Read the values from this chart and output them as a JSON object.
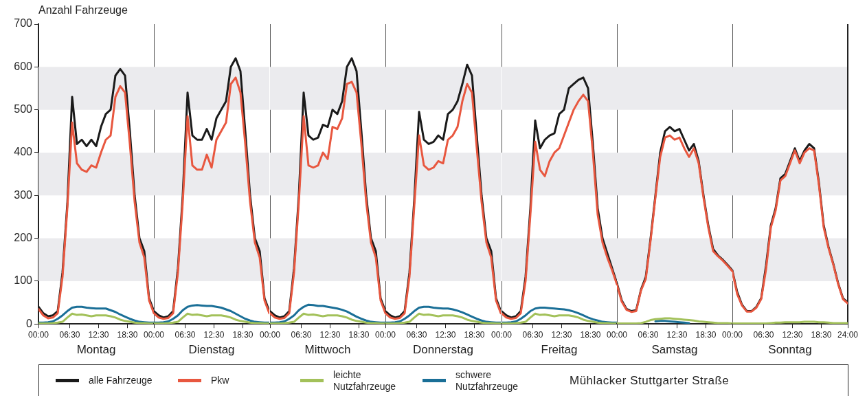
{
  "chart_data": [
    {
      "type": "line",
      "ylabel": "Anzahl Fahrzeuge",
      "xlabel": "Montag",
      "x": [
        0,
        1,
        2,
        3,
        4,
        5,
        6,
        7,
        8,
        9,
        10,
        11,
        12,
        13,
        14,
        15,
        16,
        17,
        18,
        19,
        20,
        21,
        22,
        23,
        24
      ],
      "xlim": [
        0,
        24
      ],
      "xticks": [
        {
          "value": 0,
          "label": "00:00"
        },
        {
          "value": 6.5,
          "label": "06:30"
        },
        {
          "value": 12.5,
          "label": "12:30"
        },
        {
          "value": 18.5,
          "label": "18:30"
        }
      ],
      "ylim": [
        0,
        700
      ],
      "yticks": [
        0,
        100,
        200,
        300,
        400,
        500,
        600,
        700
      ],
      "bands": [
        {
          "axis": "y",
          "from": 100,
          "to": 200,
          "color": "#ebebee"
        },
        {
          "axis": "y",
          "from": 300,
          "to": 400,
          "color": "#ebebee"
        },
        {
          "axis": "y",
          "from": 500,
          "to": 600,
          "color": "#ebebee"
        }
      ],
      "grid": false,
      "marker": "none",
      "line_style": "solid",
      "legend": "bottom",
      "annotations": [
        "Mühlacker Stuttgarter Straße"
      ],
      "series": [
        {
          "name": "alle Fahrzeuge",
          "color": "#1a1a1a",
          "values": [
            40,
            25,
            18,
            20,
            30,
            120,
            280,
            530,
            420,
            430,
            415,
            430,
            415,
            460,
            490,
            500,
            580,
            595,
            580,
            450,
            300,
            200,
            170,
            60,
            30
          ]
        },
        {
          "name": "Pkw",
          "color": "#e8573f",
          "values": [
            35,
            20,
            13,
            15,
            25,
            110,
            270,
            470,
            375,
            360,
            355,
            370,
            365,
            400,
            430,
            440,
            530,
            555,
            540,
            420,
            285,
            190,
            155,
            55,
            25
          ]
        },
        {
          "name": "leichte Nutzfahrzeuge",
          "color": "#a3c15a",
          "values": [
            1,
            1,
            1,
            2,
            3,
            5,
            15,
            24,
            21,
            22,
            20,
            18,
            20,
            20,
            20,
            18,
            15,
            10,
            7,
            5,
            3,
            2,
            2,
            1,
            1
          ]
        },
        {
          "name": "schwere Nutzfahrzeuge",
          "color": "#1a6f97",
          "values": [
            3,
            3,
            4,
            6,
            12,
            20,
            30,
            38,
            40,
            40,
            38,
            37,
            36,
            36,
            36,
            32,
            28,
            22,
            17,
            12,
            8,
            5,
            4,
            3,
            3
          ]
        }
      ]
    },
    {
      "type": "line",
      "xlabel": "Dienstag",
      "x": [
        0,
        1,
        2,
        3,
        4,
        5,
        6,
        7,
        8,
        9,
        10,
        11,
        12,
        13,
        14,
        15,
        16,
        17,
        18,
        19,
        20,
        21,
        22,
        23,
        24
      ],
      "xlim": [
        0,
        24
      ],
      "xticks": [
        {
          "value": 0,
          "label": "00:00"
        },
        {
          "value": 6.5,
          "label": "06:30"
        },
        {
          "value": 12.5,
          "label": "12:30"
        },
        {
          "value": 18.5,
          "label": "18:30"
        }
      ],
      "ylim": [
        0,
        700
      ],
      "yticks": [
        0,
        100,
        200,
        300,
        400,
        500,
        600,
        700
      ],
      "tick_labels": "x",
      "bands": [
        {
          "axis": "y",
          "from": 100,
          "to": 200,
          "color": "#ebebee"
        },
        {
          "axis": "y",
          "from": 300,
          "to": 400,
          "color": "#ebebee"
        },
        {
          "axis": "y",
          "from": 500,
          "to": 600,
          "color": "#ebebee"
        }
      ],
      "grid": false,
      "marker": "none",
      "line_style": "solid",
      "series": [
        {
          "color": "#1a1a1a",
          "values": [
            30,
            20,
            15,
            18,
            30,
            130,
            300,
            540,
            440,
            430,
            430,
            455,
            430,
            480,
            500,
            520,
            600,
            620,
            590,
            450,
            300,
            200,
            170,
            60,
            30
          ]
        },
        {
          "color": "#e8573f",
          "values": [
            25,
            15,
            12,
            14,
            25,
            120,
            285,
            485,
            370,
            360,
            360,
            395,
            365,
            430,
            450,
            470,
            560,
            575,
            540,
            420,
            285,
            190,
            155,
            55,
            25
          ]
        },
        {
          "color": "#a3c15a",
          "values": [
            1,
            1,
            1,
            2,
            3,
            5,
            15,
            24,
            21,
            22,
            20,
            18,
            20,
            20,
            20,
            18,
            15,
            10,
            7,
            5,
            3,
            2,
            2,
            1,
            1
          ]
        },
        {
          "color": "#1a6f97",
          "values": [
            3,
            3,
            4,
            6,
            12,
            20,
            32,
            40,
            43,
            44,
            43,
            42,
            42,
            40,
            38,
            34,
            30,
            24,
            18,
            12,
            8,
            5,
            4,
            3,
            3
          ]
        }
      ]
    },
    {
      "type": "line",
      "xlabel": "Mittwoch",
      "x": [
        0,
        1,
        2,
        3,
        4,
        5,
        6,
        7,
        8,
        9,
        10,
        11,
        12,
        13,
        14,
        15,
        16,
        17,
        18,
        19,
        20,
        21,
        22,
        23,
        24
      ],
      "xlim": [
        0,
        24
      ],
      "xticks": [
        {
          "value": 0,
          "label": "00:00"
        },
        {
          "value": 6.5,
          "label": "06:30"
        },
        {
          "value": 12.5,
          "label": "12:30"
        },
        {
          "value": 18.5,
          "label": "18:30"
        }
      ],
      "ylim": [
        0,
        700
      ],
      "yticks": [
        0,
        100,
        200,
        300,
        400,
        500,
        600,
        700
      ],
      "tick_labels": "x",
      "bands": [
        {
          "axis": "y",
          "from": 100,
          "to": 200,
          "color": "#ebebee"
        },
        {
          "axis": "y",
          "from": 300,
          "to": 400,
          "color": "#ebebee"
        },
        {
          "axis": "y",
          "from": 500,
          "to": 600,
          "color": "#ebebee"
        }
      ],
      "grid": false,
      "marker": "none",
      "line_style": "solid",
      "series": [
        {
          "color": "#1a1a1a",
          "values": [
            30,
            20,
            15,
            18,
            30,
            130,
            300,
            540,
            440,
            430,
            435,
            465,
            460,
            500,
            490,
            520,
            600,
            620,
            590,
            450,
            300,
            200,
            170,
            60,
            30
          ]
        },
        {
          "color": "#e8573f",
          "values": [
            25,
            15,
            12,
            14,
            25,
            120,
            285,
            485,
            370,
            365,
            370,
            400,
            385,
            460,
            455,
            480,
            560,
            565,
            540,
            420,
            285,
            190,
            155,
            55,
            25
          ]
        },
        {
          "color": "#a3c15a",
          "values": [
            1,
            1,
            1,
            2,
            3,
            5,
            15,
            24,
            21,
            22,
            20,
            18,
            20,
            20,
            20,
            18,
            15,
            10,
            7,
            5,
            3,
            2,
            2,
            1,
            1
          ]
        },
        {
          "color": "#1a6f97",
          "values": [
            3,
            3,
            4,
            6,
            12,
            20,
            32,
            40,
            45,
            44,
            42,
            42,
            40,
            38,
            36,
            33,
            29,
            23,
            17,
            12,
            8,
            5,
            4,
            3,
            3
          ]
        }
      ]
    },
    {
      "type": "line",
      "xlabel": "Donnerstag",
      "x": [
        0,
        1,
        2,
        3,
        4,
        5,
        6,
        7,
        8,
        9,
        10,
        11,
        12,
        13,
        14,
        15,
        16,
        17,
        18,
        19,
        20,
        21,
        22,
        23,
        24
      ],
      "xlim": [
        0,
        24
      ],
      "xticks": [
        {
          "value": 0,
          "label": "00:00"
        },
        {
          "value": 6.5,
          "label": "06:30"
        },
        {
          "value": 12.5,
          "label": "12:30"
        },
        {
          "value": 18.5,
          "label": "18:30"
        }
      ],
      "ylim": [
        0,
        700
      ],
      "yticks": [
        0,
        100,
        200,
        300,
        400,
        500,
        600,
        700
      ],
      "tick_labels": "x",
      "bands": [
        {
          "axis": "y",
          "from": 100,
          "to": 200,
          "color": "#ebebee"
        },
        {
          "axis": "y",
          "from": 300,
          "to": 400,
          "color": "#ebebee"
        },
        {
          "axis": "y",
          "from": 500,
          "to": 600,
          "color": "#ebebee"
        }
      ],
      "grid": false,
      "marker": "none",
      "line_style": "solid",
      "series": [
        {
          "color": "#1a1a1a",
          "values": [
            30,
            20,
            15,
            18,
            30,
            120,
            290,
            495,
            430,
            420,
            425,
            440,
            430,
            490,
            500,
            520,
            560,
            605,
            580,
            440,
            300,
            200,
            170,
            60,
            30
          ]
        },
        {
          "color": "#e8573f",
          "values": [
            25,
            15,
            12,
            14,
            25,
            110,
            275,
            440,
            370,
            360,
            365,
            380,
            375,
            430,
            440,
            460,
            520,
            560,
            540,
            410,
            285,
            190,
            155,
            55,
            25
          ]
        },
        {
          "color": "#a3c15a",
          "values": [
            1,
            1,
            1,
            2,
            3,
            5,
            15,
            24,
            21,
            22,
            20,
            18,
            20,
            20,
            20,
            18,
            15,
            10,
            7,
            5,
            3,
            2,
            2,
            1,
            1
          ]
        },
        {
          "color": "#1a6f97",
          "values": [
            3,
            3,
            4,
            6,
            12,
            20,
            30,
            38,
            40,
            40,
            38,
            37,
            36,
            36,
            34,
            31,
            27,
            22,
            17,
            12,
            8,
            5,
            4,
            3,
            3
          ]
        }
      ]
    },
    {
      "type": "line",
      "xlabel": "Freitag",
      "x": [
        0,
        1,
        2,
        3,
        4,
        5,
        6,
        7,
        8,
        9,
        10,
        11,
        12,
        13,
        14,
        15,
        16,
        17,
        18,
        19,
        20,
        21,
        22,
        23,
        24
      ],
      "xlim": [
        0,
        24
      ],
      "xticks": [
        {
          "value": 0,
          "label": "00:00"
        },
        {
          "value": 6.5,
          "label": "06:30"
        },
        {
          "value": 12.5,
          "label": "12:30"
        },
        {
          "value": 18.5,
          "label": "18:30"
        }
      ],
      "ylim": [
        0,
        700
      ],
      "yticks": [
        0,
        100,
        200,
        300,
        400,
        500,
        600,
        700
      ],
      "tick_labels": "x",
      "bands": [
        {
          "axis": "y",
          "from": 100,
          "to": 200,
          "color": "#ebebee"
        },
        {
          "axis": "y",
          "from": 300,
          "to": 400,
          "color": "#ebebee"
        },
        {
          "axis": "y",
          "from": 500,
          "to": 600,
          "color": "#ebebee"
        }
      ],
      "grid": false,
      "marker": "none",
      "line_style": "solid",
      "series": [
        {
          "color": "#1a1a1a",
          "values": [
            30,
            20,
            15,
            18,
            30,
            110,
            270,
            475,
            410,
            430,
            440,
            445,
            490,
            500,
            550,
            560,
            570,
            575,
            550,
            420,
            270,
            200,
            165,
            130,
            95
          ]
        },
        {
          "color": "#e8573f",
          "values": [
            25,
            15,
            12,
            14,
            25,
            100,
            255,
            425,
            360,
            345,
            380,
            400,
            410,
            440,
            470,
            500,
            520,
            535,
            520,
            400,
            255,
            190,
            155,
            125,
            92
          ]
        },
        {
          "color": "#a3c15a",
          "values": [
            1,
            1,
            1,
            2,
            3,
            5,
            15,
            24,
            21,
            22,
            20,
            18,
            20,
            20,
            20,
            18,
            15,
            10,
            7,
            5,
            3,
            2,
            2,
            1,
            1
          ]
        },
        {
          "color": "#1a6f97",
          "values": [
            3,
            3,
            4,
            6,
            12,
            20,
            30,
            36,
            38,
            38,
            37,
            36,
            35,
            34,
            32,
            29,
            25,
            20,
            15,
            11,
            8,
            5,
            4,
            3,
            3
          ]
        }
      ]
    },
    {
      "type": "line",
      "xlabel": "Samstag",
      "x": [
        0,
        1,
        2,
        3,
        4,
        5,
        6,
        7,
        8,
        9,
        10,
        11,
        12,
        13,
        14,
        15,
        16,
        17,
        18,
        19,
        20,
        21,
        22,
        23,
        24
      ],
      "xlim": [
        0,
        24
      ],
      "xticks": [
        {
          "value": 0,
          "label": "00:00"
        },
        {
          "value": 6.5,
          "label": "06:30"
        },
        {
          "value": 12.5,
          "label": "12:30"
        },
        {
          "value": 18.5,
          "label": "18:30"
        }
      ],
      "ylim": [
        0,
        700
      ],
      "yticks": [
        0,
        100,
        200,
        300,
        400,
        500,
        600,
        700
      ],
      "tick_labels": "x",
      "bands": [
        {
          "axis": "y",
          "from": 100,
          "to": 200,
          "color": "#ebebee"
        },
        {
          "axis": "y",
          "from": 300,
          "to": 400,
          "color": "#ebebee"
        },
        {
          "axis": "y",
          "from": 500,
          "to": 600,
          "color": "#ebebee"
        }
      ],
      "grid": false,
      "marker": "none",
      "line_style": "solid",
      "series": [
        {
          "color": "#1a1a1a",
          "values": [
            95,
            55,
            35,
            30,
            32,
            80,
            110,
            200,
            300,
            400,
            450,
            460,
            450,
            455,
            430,
            405,
            420,
            380,
            300,
            230,
            175,
            160,
            150,
            138,
            125
          ]
        },
        {
          "color": "#e8573f",
          "values": [
            92,
            52,
            33,
            28,
            30,
            78,
            105,
            195,
            295,
            390,
            435,
            440,
            430,
            435,
            410,
            390,
            410,
            375,
            295,
            225,
            170,
            158,
            148,
            136,
            123
          ]
        },
        {
          "color": "#a3c15a",
          "values": [
            1,
            1,
            1,
            1,
            1,
            2,
            5,
            9,
            11,
            12,
            13,
            13,
            12,
            11,
            10,
            9,
            8,
            6,
            5,
            4,
            3,
            2,
            2,
            2,
            1
          ]
        },
        {
          "color": "#1a6f97",
          "values": [
            null,
            null,
            null,
            null,
            null,
            null,
            null,
            null,
            6,
            7,
            7,
            6,
            5,
            4,
            3,
            2,
            null,
            null,
            null,
            null,
            null,
            null,
            null,
            null,
            null
          ]
        }
      ]
    },
    {
      "type": "line",
      "xlabel": "Sonntag",
      "x": [
        0,
        1,
        2,
        3,
        4,
        5,
        6,
        7,
        8,
        9,
        10,
        11,
        12,
        13,
        14,
        15,
        16,
        17,
        18,
        19,
        20,
        21,
        22,
        23,
        24
      ],
      "xlim": [
        0,
        24
      ],
      "xticks": [
        {
          "value": 0,
          "label": "00:00"
        },
        {
          "value": 6.5,
          "label": "06:30"
        },
        {
          "value": 12.5,
          "label": "12:30"
        },
        {
          "value": 18.5,
          "label": "18:30"
        },
        {
          "value": 24,
          "label": "24:00"
        }
      ],
      "ylim": [
        0,
        700
      ],
      "yticks": [
        0,
        100,
        200,
        300,
        400,
        500,
        600,
        700
      ],
      "tick_labels": "x",
      "bands": [
        {
          "axis": "y",
          "from": 100,
          "to": 200,
          "color": "#ebebee"
        },
        {
          "axis": "y",
          "from": 300,
          "to": 400,
          "color": "#ebebee"
        },
        {
          "axis": "y",
          "from": 500,
          "to": 600,
          "color": "#ebebee"
        }
      ],
      "grid": false,
      "marker": "none",
      "line_style": "solid",
      "series": [
        {
          "color": "#1a1a1a",
          "values": [
            125,
            75,
            45,
            30,
            30,
            40,
            60,
            136,
            230,
            270,
            340,
            350,
            380,
            410,
            380,
            405,
            420,
            410,
            330,
            230,
            180,
            140,
            95,
            60,
            50
          ]
        },
        {
          "color": "#e8573f",
          "values": [
            123,
            70,
            43,
            29,
            29,
            38,
            58,
            127,
            225,
            265,
            335,
            345,
            375,
            405,
            375,
            400,
            410,
            405,
            325,
            225,
            177,
            138,
            93,
            58,
            48
          ]
        },
        {
          "color": "#a3c15a",
          "values": [
            1,
            1,
            1,
            1,
            1,
            1,
            1,
            1,
            2,
            3,
            3,
            4,
            4,
            4,
            4,
            5,
            5,
            5,
            4,
            4,
            3,
            2,
            2,
            2,
            2
          ]
        },
        {
          "color": "#1a6f97",
          "values": [
            null,
            null,
            null,
            null,
            null,
            null,
            null,
            null,
            null,
            null,
            null,
            null,
            null,
            null,
            null,
            null,
            null,
            null,
            null,
            null,
            null,
            null,
            null,
            null,
            null
          ]
        }
      ]
    }
  ]
}
